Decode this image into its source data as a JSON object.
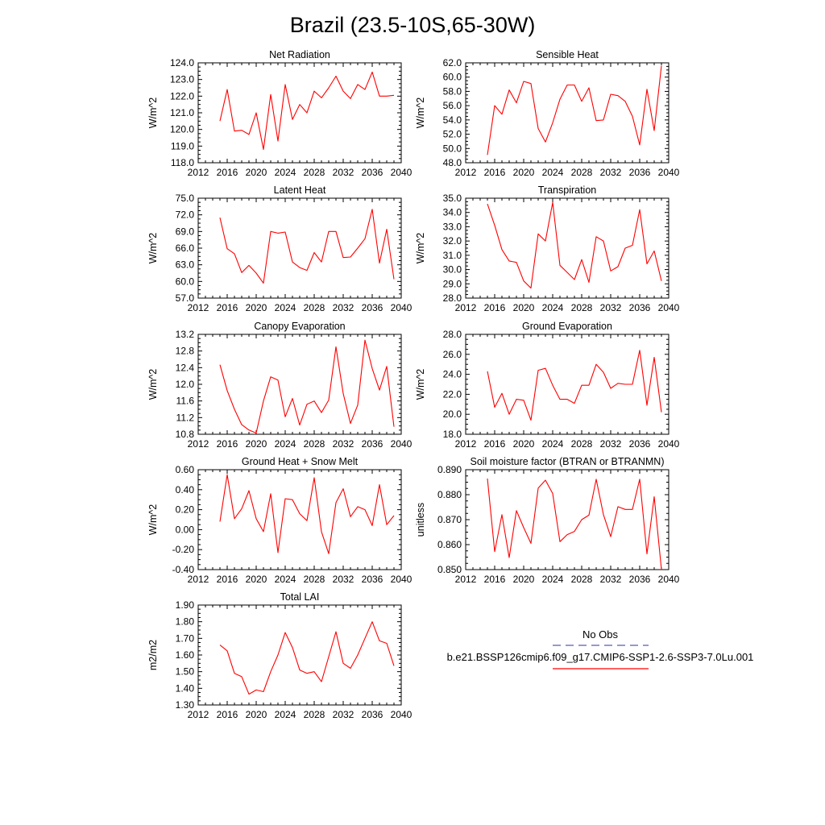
{
  "page": {
    "title": "Brazil (23.5-10S,65-30W)"
  },
  "colors": {
    "model": "#ff0000",
    "obs": "#5b5bb0"
  },
  "legend": {
    "obs_label": "No Obs",
    "model_label": "b.e21.BSSP126cmip6.f09_g17.CMIP6-SSP1-2.6-SSP3-7.0Lu.001"
  },
  "chart_data": [
    {
      "type": "line",
      "title": "Net Radiation",
      "ylabel": "W/m^2",
      "xlim": [
        2012,
        2040
      ],
      "xticks": [
        "2012",
        "2016",
        "2020",
        "2024",
        "2028",
        "2032",
        "2036",
        "2040"
      ],
      "ylim": [
        118.0,
        124.0
      ],
      "yticks": [
        "118.0",
        "119.0",
        "120.0",
        "121.0",
        "122.0",
        "123.0",
        "124.0"
      ],
      "x": [
        2015,
        2016,
        2017,
        2018,
        2019,
        2020,
        2021,
        2022,
        2023,
        2024,
        2025,
        2026,
        2027,
        2028,
        2029,
        2030,
        2031,
        2032,
        2033,
        2034,
        2035,
        2036,
        2037,
        2038,
        2039
      ],
      "series": [
        {
          "values": [
            120.5,
            122.4,
            119.9,
            119.95,
            119.7,
            121.0,
            118.8,
            122.1,
            119.3,
            122.7,
            120.6,
            121.5,
            121.0,
            122.3,
            121.9,
            122.5,
            123.2,
            122.3,
            121.85,
            122.7,
            122.4,
            123.45,
            122.0,
            122.0,
            122.05
          ]
        }
      ]
    },
    {
      "type": "line",
      "title": "Sensible Heat",
      "ylabel": "W/m^2",
      "xlim": [
        2012,
        2040
      ],
      "xticks": [
        "2012",
        "2016",
        "2020",
        "2024",
        "2028",
        "2032",
        "2036",
        "2040"
      ],
      "ylim": [
        48.0,
        62.0
      ],
      "yticks": [
        "48.0",
        "50.0",
        "52.0",
        "54.0",
        "56.0",
        "58.0",
        "60.0",
        "62.0"
      ],
      "x": [
        2015,
        2016,
        2017,
        2018,
        2019,
        2020,
        2021,
        2022,
        2023,
        2024,
        2025,
        2026,
        2027,
        2028,
        2029,
        2030,
        2031,
        2032,
        2033,
        2034,
        2035,
        2036,
        2037,
        2038,
        2039
      ],
      "series": [
        {
          "values": [
            49.1,
            56.0,
            54.8,
            58.2,
            56.4,
            59.4,
            59.1,
            52.8,
            50.9,
            53.6,
            56.9,
            58.9,
            58.9,
            56.6,
            58.5,
            53.9,
            54.0,
            57.6,
            57.4,
            56.6,
            54.5,
            50.5,
            58.3,
            52.5,
            61.6
          ]
        }
      ]
    },
    {
      "type": "line",
      "title": "Latent Heat",
      "ylabel": "W/m^2",
      "xlim": [
        2012,
        2040
      ],
      "xticks": [
        "2012",
        "2016",
        "2020",
        "2024",
        "2028",
        "2032",
        "2036",
        "2040"
      ],
      "ylim": [
        57.0,
        75.0
      ],
      "yticks": [
        "57.0",
        "60.0",
        "63.0",
        "66.0",
        "69.0",
        "72.0",
        "75.0"
      ],
      "x": [
        2015,
        2016,
        2017,
        2018,
        2019,
        2020,
        2021,
        2022,
        2023,
        2024,
        2025,
        2026,
        2027,
        2028,
        2029,
        2030,
        2031,
        2032,
        2033,
        2034,
        2035,
        2036,
        2037,
        2038,
        2039
      ],
      "series": [
        {
          "values": [
            71.5,
            65.9,
            65.0,
            61.6,
            62.9,
            61.5,
            59.7,
            69.0,
            68.7,
            68.9,
            63.5,
            62.5,
            62.0,
            65.2,
            63.5,
            69.0,
            69.0,
            64.3,
            64.4,
            66.0,
            67.7,
            73.0,
            63.3,
            69.4,
            60.4
          ]
        }
      ]
    },
    {
      "type": "line",
      "title": "Transpiration",
      "ylabel": "W/m^2",
      "xlim": [
        2012,
        2040
      ],
      "xticks": [
        "2012",
        "2016",
        "2020",
        "2024",
        "2028",
        "2032",
        "2036",
        "2040"
      ],
      "ylim": [
        28.0,
        35.0
      ],
      "yticks": [
        "28.0",
        "29.0",
        "30.0",
        "31.0",
        "32.0",
        "33.0",
        "34.0",
        "35.0"
      ],
      "x": [
        2015,
        2016,
        2017,
        2018,
        2019,
        2020,
        2021,
        2022,
        2023,
        2024,
        2025,
        2026,
        2027,
        2028,
        2029,
        2030,
        2031,
        2032,
        2033,
        2034,
        2035,
        2036,
        2037,
        2038,
        2039
      ],
      "series": [
        {
          "values": [
            34.6,
            33.1,
            31.4,
            30.6,
            30.5,
            29.2,
            28.7,
            32.5,
            32.0,
            34.7,
            30.3,
            29.8,
            29.3,
            30.7,
            29.1,
            32.3,
            32.0,
            29.9,
            30.2,
            31.5,
            31.7,
            34.2,
            30.4,
            31.3,
            29.2
          ]
        }
      ]
    },
    {
      "type": "line",
      "title": "Canopy Evaporation",
      "ylabel": "W/m^2",
      "xlim": [
        2012,
        2040
      ],
      "xticks": [
        "2012",
        "2016",
        "2020",
        "2024",
        "2028",
        "2032",
        "2036",
        "2040"
      ],
      "ylim": [
        10.8,
        13.2
      ],
      "yticks": [
        "10.8",
        "11.2",
        "11.6",
        "12.0",
        "12.4",
        "12.8",
        "13.2"
      ],
      "x": [
        2015,
        2016,
        2017,
        2018,
        2019,
        2020,
        2021,
        2022,
        2023,
        2024,
        2025,
        2026,
        2027,
        2028,
        2029,
        2030,
        2031,
        2032,
        2033,
        2034,
        2035,
        2036,
        2037,
        2038,
        2039
      ],
      "series": [
        {
          "values": [
            12.47,
            11.85,
            11.4,
            11.03,
            10.9,
            10.83,
            11.6,
            12.18,
            12.1,
            11.22,
            11.66,
            11.02,
            11.52,
            11.6,
            11.32,
            11.62,
            12.9,
            11.78,
            11.06,
            11.5,
            13.06,
            12.38,
            11.86,
            12.43,
            10.98
          ]
        }
      ]
    },
    {
      "type": "line",
      "title": "Ground Evaporation",
      "ylabel": "W/m^2",
      "xlim": [
        2012,
        2040
      ],
      "xticks": [
        "2012",
        "2016",
        "2020",
        "2024",
        "2028",
        "2032",
        "2036",
        "2040"
      ],
      "ylim": [
        18.0,
        28.0
      ],
      "yticks": [
        "18.0",
        "20.0",
        "22.0",
        "24.0",
        "26.0",
        "28.0"
      ],
      "x": [
        2015,
        2016,
        2017,
        2018,
        2019,
        2020,
        2021,
        2022,
        2023,
        2024,
        2025,
        2026,
        2027,
        2028,
        2029,
        2030,
        2031,
        2032,
        2033,
        2034,
        2035,
        2036,
        2037,
        2038,
        2039
      ],
      "series": [
        {
          "values": [
            24.3,
            20.7,
            22.1,
            20.0,
            21.5,
            21.4,
            19.4,
            24.4,
            24.6,
            22.9,
            21.5,
            21.5,
            21.1,
            22.9,
            22.9,
            25.0,
            24.2,
            22.6,
            23.1,
            23.0,
            23.0,
            26.4,
            20.9,
            25.7,
            20.2
          ]
        }
      ]
    },
    {
      "type": "line",
      "title": "Ground Heat + Snow Melt",
      "ylabel": "W/m^2",
      "xlim": [
        2012,
        2040
      ],
      "xticks": [
        "2012",
        "2016",
        "2020",
        "2024",
        "2028",
        "2032",
        "2036",
        "2040"
      ],
      "ylim": [
        -0.4,
        0.6
      ],
      "yticks": [
        "-0.40",
        "-0.20",
        "0.00",
        "0.20",
        "0.40",
        "0.60"
      ],
      "x": [
        2015,
        2016,
        2017,
        2018,
        2019,
        2020,
        2021,
        2022,
        2023,
        2024,
        2025,
        2026,
        2027,
        2028,
        2029,
        2030,
        2031,
        2032,
        2033,
        2034,
        2035,
        2036,
        2037,
        2038,
        2039
      ],
      "series": [
        {
          "values": [
            0.08,
            0.55,
            0.11,
            0.21,
            0.39,
            0.11,
            -0.02,
            0.36,
            -0.23,
            0.31,
            0.3,
            0.16,
            0.09,
            0.52,
            -0.02,
            -0.24,
            0.27,
            0.41,
            0.13,
            0.23,
            0.2,
            0.04,
            0.45,
            0.05,
            0.14
          ]
        }
      ]
    },
    {
      "type": "line",
      "title": "Soil moisture factor (BTRAN or BTRANMN)",
      "ylabel": "unitless",
      "xlim": [
        2012,
        2040
      ],
      "xticks": [
        "2012",
        "2016",
        "2020",
        "2024",
        "2028",
        "2032",
        "2036",
        "2040"
      ],
      "ylim": [
        0.85,
        0.89
      ],
      "yticks": [
        "0.850",
        "0.860",
        "0.870",
        "0.880",
        "0.890"
      ],
      "x": [
        2015,
        2016,
        2017,
        2018,
        2019,
        2020,
        2021,
        2022,
        2023,
        2024,
        2025,
        2026,
        2027,
        2028,
        2029,
        2030,
        2031,
        2032,
        2033,
        2034,
        2035,
        2036,
        2037,
        2038,
        2039
      ],
      "series": [
        {
          "values": [
            0.8865,
            0.8572,
            0.872,
            0.8548,
            0.8736,
            0.8668,
            0.8605,
            0.8826,
            0.8858,
            0.8805,
            0.8612,
            0.864,
            0.8653,
            0.87,
            0.8718,
            0.8862,
            0.872,
            0.8632,
            0.8752,
            0.8741,
            0.8741,
            0.8862,
            0.8563,
            0.8792,
            0.8498
          ]
        }
      ]
    },
    {
      "type": "line",
      "title": "Total LAI",
      "ylabel": "m2/m2",
      "xlim": [
        2012,
        2040
      ],
      "xticks": [
        "2012",
        "2016",
        "2020",
        "2024",
        "2028",
        "2032",
        "2036",
        "2040"
      ],
      "ylim": [
        1.3,
        1.9
      ],
      "yticks": [
        "1.30",
        "1.40",
        "1.50",
        "1.60",
        "1.70",
        "1.80",
        "1.90"
      ],
      "x": [
        2015,
        2016,
        2017,
        2018,
        2019,
        2020,
        2021,
        2022,
        2023,
        2024,
        2025,
        2026,
        2027,
        2028,
        2029,
        2030,
        2031,
        2032,
        2033,
        2034,
        2035,
        2036,
        2037,
        2038,
        2039
      ],
      "series": [
        {
          "values": [
            1.66,
            1.625,
            1.49,
            1.47,
            1.365,
            1.39,
            1.38,
            1.5,
            1.6,
            1.735,
            1.645,
            1.51,
            1.49,
            1.5,
            1.44,
            1.59,
            1.74,
            1.55,
            1.52,
            1.6,
            1.7,
            1.8,
            1.685,
            1.67,
            1.535
          ]
        }
      ]
    }
  ]
}
